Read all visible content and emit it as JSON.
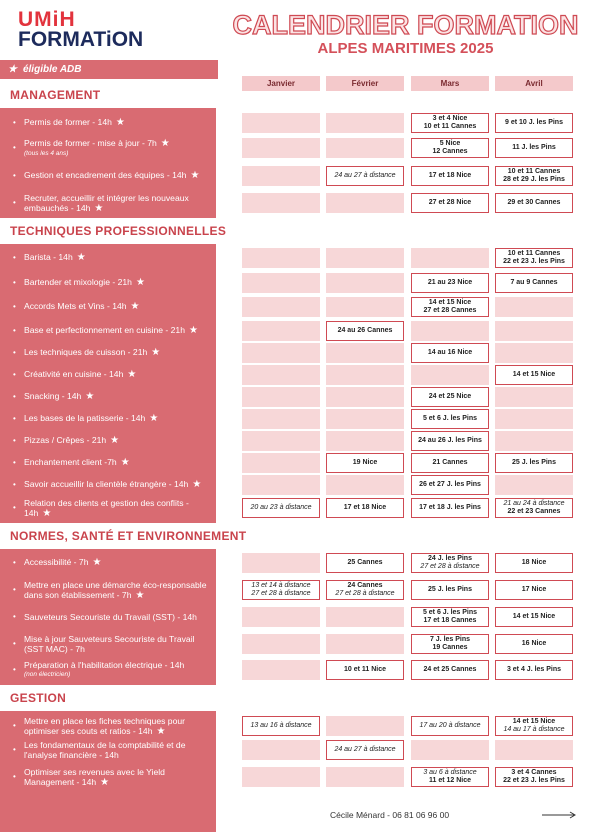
{
  "header": {
    "logo": [
      "UMiH",
      "FORMATiON"
    ],
    "title": "CALENDRIER FORMATION",
    "subtitle": "ALPES MARITIMES 2025"
  },
  "legend": "éligible ADB",
  "months": [
    "Janvier",
    "Février",
    "Mars",
    "Avril"
  ],
  "sections": [
    {
      "title": "MANAGEMENT",
      "rows": [
        {
          "label": "Permis de former - 14h",
          "adb": true,
          "cells": [
            null,
            null,
            [
              "3 et 4 Nice",
              "10 et 11 Cannes"
            ],
            [
              "9 et 10 J. les Pins"
            ]
          ]
        },
        {
          "label": "Permis de former - mise à jour - 7h",
          "note": "(tous les 4 ans)",
          "adb": true,
          "cells": [
            null,
            null,
            [
              "5 Nice",
              "12 Cannes"
            ],
            [
              "11 J. les Pins"
            ]
          ]
        },
        {
          "label": "Gestion et encadrement des équipes - 14h",
          "adb": true,
          "cells": [
            null,
            [
              "24 au 27 à distance"
            ],
            [
              "17 et 18 Nice"
            ],
            [
              "10 et 11 Cannes",
              "28 et 29 J. les Pins"
            ]
          ]
        },
        {
          "label": "Recruter, accueillir et intégrer les nouveaux embauchés - 14h",
          "adb": true,
          "cells": [
            null,
            null,
            [
              "27 et 28 Nice"
            ],
            [
              "29 et 30 Cannes"
            ]
          ]
        }
      ]
    },
    {
      "title": "TECHNIQUES PROFESSIONNELLES",
      "rows": [
        {
          "label": "Barista - 14h",
          "adb": true,
          "cells": [
            null,
            null,
            null,
            [
              "10 et 11 Cannes",
              "22 et 23 J. les Pins"
            ]
          ]
        },
        {
          "label": "Bartender et mixologie - 21h",
          "adb": true,
          "cells": [
            null,
            null,
            [
              "21 au 23 Nice"
            ],
            [
              "7 au 9 Cannes"
            ]
          ]
        },
        {
          "label": "Accords Mets et Vins - 14h",
          "adb": true,
          "cells": [
            null,
            null,
            [
              "14 et 15 Nice",
              "27 et 28 Cannes"
            ],
            null
          ]
        },
        {
          "label": "Base et perfectionnement en cuisine - 21h",
          "adb": true,
          "cells": [
            null,
            [
              "24 au 26 Cannes"
            ],
            null,
            null
          ]
        },
        {
          "label": "Les techniques de cuisson - 21h",
          "adb": true,
          "cells": [
            null,
            null,
            [
              "14 au 16 Nice"
            ],
            null
          ]
        },
        {
          "label": "Créativité en cuisine - 14h",
          "adb": true,
          "cells": [
            null,
            null,
            null,
            [
              "14 et 15 Nice"
            ]
          ]
        },
        {
          "label": "Snacking - 14h",
          "adb": true,
          "cells": [
            null,
            null,
            [
              "24 et 25 Nice"
            ],
            null
          ]
        },
        {
          "label": "Les bases de la patisserie - 14h",
          "adb": true,
          "cells": [
            null,
            null,
            [
              "5 et 6 J. les Pins"
            ],
            null
          ]
        },
        {
          "label": "Pizzas / Crêpes - 21h",
          "adb": true,
          "cells": [
            null,
            null,
            [
              "24 au 26 J. les Pins"
            ],
            null
          ]
        },
        {
          "label": "Enchantement client -7h",
          "adb": true,
          "cells": [
            null,
            [
              "19 Nice"
            ],
            [
              "21 Cannes"
            ],
            [
              "25 J. les Pins"
            ]
          ]
        },
        {
          "label": "Savoir accueillir la clientèle étrangère - 14h",
          "adb": true,
          "cells": [
            null,
            null,
            [
              "26 et 27 J. les Pins"
            ],
            null
          ]
        },
        {
          "label": "Relation des clients et gestion des conflits - 14h",
          "adb": true,
          "cells": [
            [
              "20 au 23 à distance"
            ],
            [
              "17 et 18 Nice"
            ],
            [
              "17 et 18 J. les Pins"
            ],
            [
              "21 au 24 à distance",
              "22 et 23 Cannes"
            ]
          ]
        }
      ]
    },
    {
      "title": "NORMES, SANTÉ ET ENVIRONNEMENT",
      "rows": [
        {
          "label": "Accessibilité - 7h",
          "adb": true,
          "cells": [
            null,
            [
              "25 Cannes"
            ],
            [
              "24 J. les Pins",
              "27 et 28 à distance"
            ],
            [
              "18 Nice"
            ]
          ]
        },
        {
          "label": "Mettre en place une démarche éco-responsable dans son établissement - 7h",
          "adb": true,
          "cells": [
            [
              "13 et 14 à distance",
              "27 et 28  à distance"
            ],
            [
              "24 Cannes",
              "27 et 28 à distance"
            ],
            [
              "25 J. les Pins"
            ],
            [
              "17 Nice"
            ]
          ]
        },
        {
          "label": "Sauveteurs Secouriste du Travail (SST) - 14h",
          "adb": false,
          "cells": [
            null,
            null,
            [
              "5 et 6 J. les Pins",
              "17 et 18 Cannes"
            ],
            [
              "14 et 15 Nice"
            ]
          ]
        },
        {
          "label": "Mise à jour Sauveteurs Secouriste du Travail (SST MAC) - 7h",
          "adb": false,
          "cells": [
            null,
            null,
            [
              "7 J. les Pins",
              "19 Cannes"
            ],
            [
              "16 Nice"
            ]
          ]
        },
        {
          "label": "Préparation à l'habilitation électrique - 14h",
          "note": "(non électricien)",
          "adb": false,
          "cells": [
            null,
            [
              "10 et 11 Nice"
            ],
            [
              "24 et 25 Cannes"
            ],
            [
              "3 et 4 J. les Pins"
            ]
          ]
        }
      ]
    },
    {
      "title": "GESTION",
      "rows": [
        {
          "label": "Mettre en place les fiches techniques pour optimiser ses couts et ratios - 14h",
          "adb": true,
          "cells": [
            [
              "13 au 16 à distance"
            ],
            null,
            [
              "17 au 20 à distance"
            ],
            [
              "14 et 15 Nice",
              "14 au 17 à distance"
            ]
          ]
        },
        {
          "label": "Les fondamentaux de la comptabilité et de l'analyse financière - 14h",
          "adb": false,
          "cells": [
            null,
            [
              "24 au 27 à distance"
            ],
            null,
            null
          ]
        },
        {
          "label": "Optimiser ses revenues avec le Yield Management - 14h",
          "adb": true,
          "cells": [
            null,
            null,
            [
              "3 au 6 à distance",
              "11 et 12 Nice"
            ],
            [
              "3 et 4 Cannes",
              "22 et 23 J. les Pins"
            ]
          ]
        }
      ]
    }
  ],
  "footer": "Cécile Ménard - 06 81 06 96 00"
}
